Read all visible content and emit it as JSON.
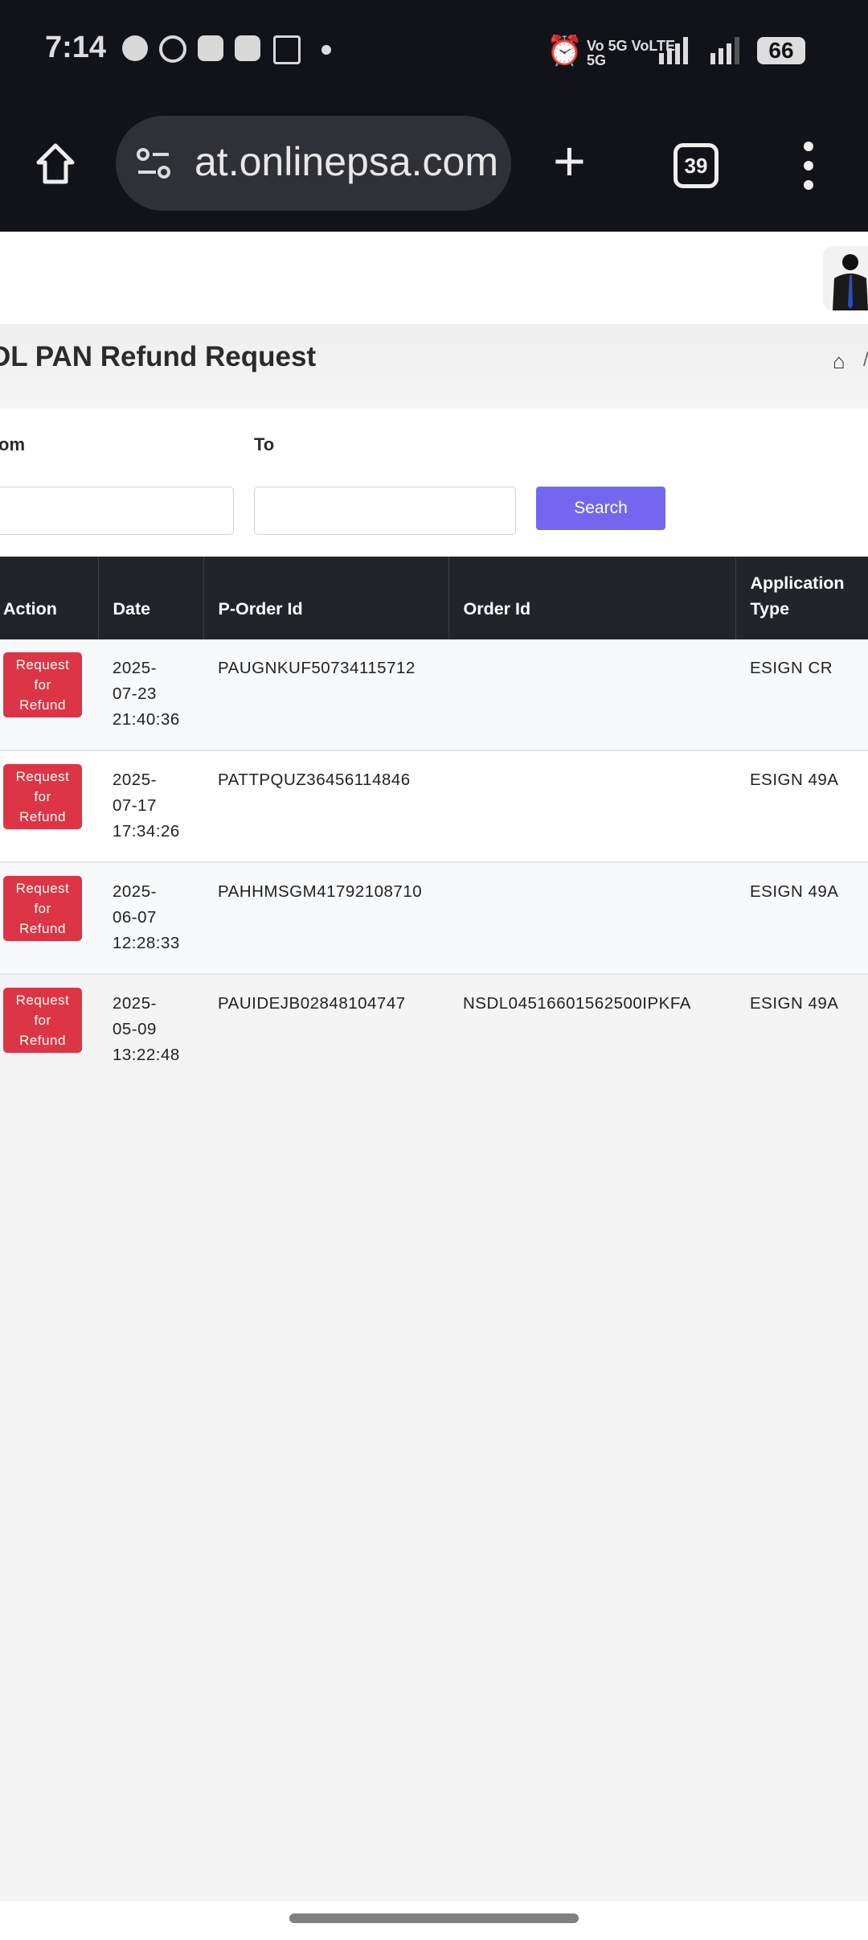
{
  "status_bar": {
    "time": "7:14",
    "network": "Vo 5G VoLTE 5G",
    "battery": "66",
    "notification_icons": [
      "chat-icon",
      "whatsapp-icon",
      "youtube-icon",
      "youtube-icon",
      "app-icon"
    ]
  },
  "browser": {
    "url": "at.onlinepsa.com",
    "tab_count": "39"
  },
  "page": {
    "title": "DL PAN Refund Request",
    "breadcrumb_sep": "/"
  },
  "filter": {
    "from_label": "om",
    "to_label": "To",
    "from_value": "",
    "to_value": "",
    "search_label": "Search"
  },
  "table": {
    "headers": [
      "Action",
      "Date",
      "P-Order Id",
      "Order Id",
      "Application Type"
    ],
    "rows": [
      {
        "action": "Request for Refund",
        "date": "2025-07-23 21:40:36",
        "porder": "PAUGNKUF50734115712",
        "order": "",
        "type": "ESIGN CR"
      },
      {
        "action": "Request for Refund",
        "date": "2025-07-17 17:34:26",
        "porder": "PATTPQUZ36456114846",
        "order": "",
        "type": "ESIGN 49A"
      },
      {
        "action": "Request for Refund",
        "date": "2025-06-07 12:28:33",
        "porder": "PAHHMSGM41792108710",
        "order": "",
        "type": "ESIGN 49A"
      },
      {
        "action": "Request for Refund",
        "date": "2025-05-09 13:22:48",
        "porder": "PAUIDEJB02848104747",
        "order": "NSDL04516601562500IPKFA",
        "type": "ESIGN 49A"
      }
    ]
  },
  "colors": {
    "primary": "#7367f0",
    "danger": "#dc3545",
    "table_header": "#212529"
  }
}
